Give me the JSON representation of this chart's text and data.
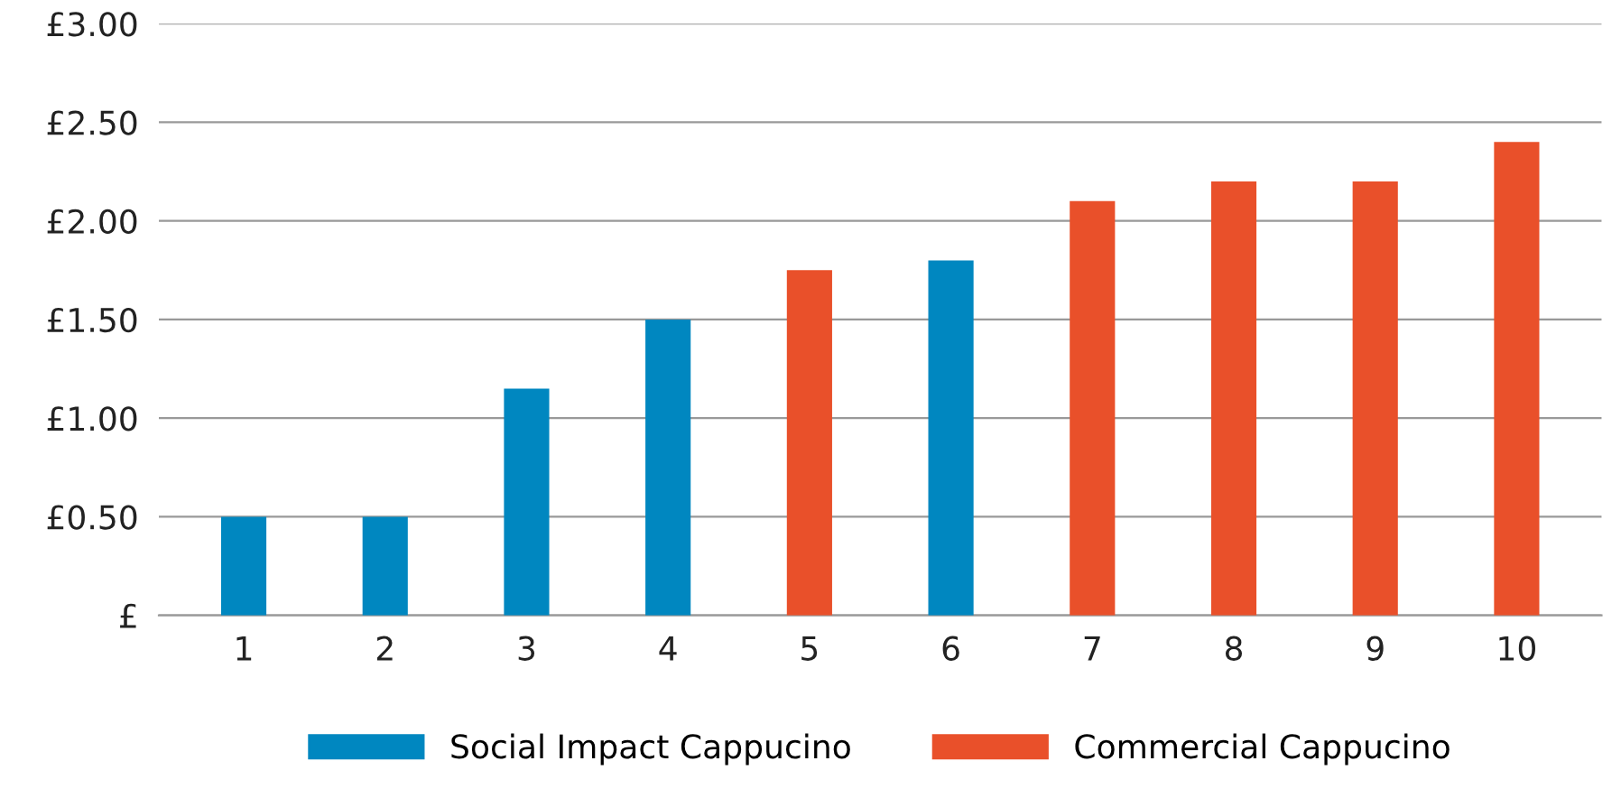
{
  "chart_data": {
    "type": "bar",
    "categories": [
      "1",
      "2",
      "3",
      "4",
      "5",
      "6",
      "7",
      "8",
      "9",
      "10"
    ],
    "series": [
      {
        "name": "Social Impact Cappucino",
        "color": "#0087c0",
        "values": [
          0.5,
          0.5,
          1.15,
          1.5,
          null,
          1.8,
          null,
          null,
          null,
          null
        ]
      },
      {
        "name": "Commercial Cappucino",
        "color": "#e9502a",
        "values": [
          null,
          null,
          null,
          null,
          1.75,
          null,
          2.1,
          2.2,
          2.2,
          2.4
        ]
      }
    ],
    "ylim": [
      0,
      3
    ],
    "yticks": [
      {
        "value": 0,
        "label": "£"
      },
      {
        "value": 0.5,
        "label": "£0.50"
      },
      {
        "value": 1,
        "label": "£1.00"
      },
      {
        "value": 1.5,
        "label": "£1.50"
      },
      {
        "value": 2,
        "label": "£2.00"
      },
      {
        "value": 2.5,
        "label": "£2.50"
      },
      {
        "value": 3,
        "label": "£3.00"
      }
    ],
    "grid": "y",
    "legend": "bottom"
  }
}
